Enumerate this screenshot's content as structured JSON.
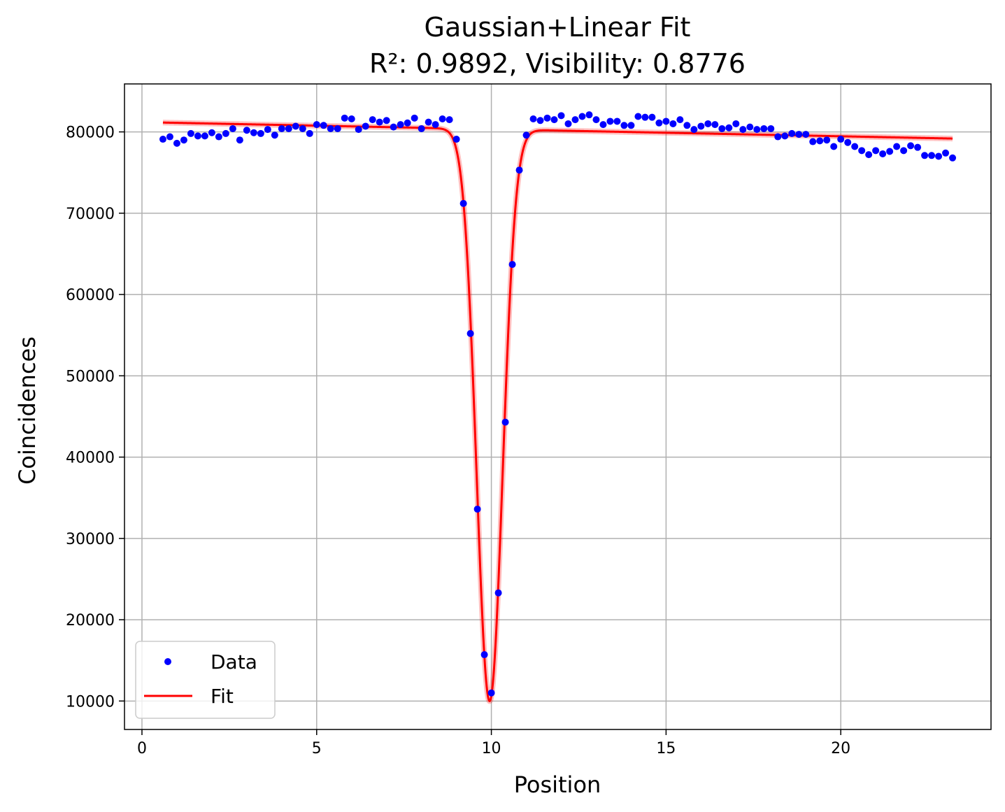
{
  "chart_data": {
    "type": "scatter",
    "title": "Gaussian+Linear Fit",
    "subtitle": "R²: 0.9892, Visibility: 0.8776",
    "xlabel": "Position",
    "ylabel": "Coincidences",
    "xlim": [
      -0.5,
      24.3
    ],
    "ylim": [
      6500,
      85900
    ],
    "xticks": [
      0,
      5,
      10,
      15,
      20
    ],
    "yticks": [
      10000,
      20000,
      30000,
      40000,
      50000,
      60000,
      70000,
      80000
    ],
    "grid": true,
    "legend_position": "lower-left",
    "series": [
      {
        "name": "Data",
        "kind": "points",
        "color": "#0000ff",
        "x": [
          0.6,
          0.8,
          1.0,
          1.2,
          1.4,
          1.6,
          1.8,
          2.0,
          2.2,
          2.4,
          2.6,
          2.8,
          3.0,
          3.2,
          3.4,
          3.6,
          3.8,
          4.0,
          4.2,
          4.4,
          4.6,
          4.8,
          5.0,
          5.2,
          5.4,
          5.6,
          5.8,
          6.0,
          6.2,
          6.4,
          6.6,
          6.8,
          7.0,
          7.2,
          7.4,
          7.6,
          7.8,
          8.0,
          8.2,
          8.4,
          8.6,
          8.8,
          9.0,
          9.2,
          9.4,
          9.6,
          9.8,
          10.0,
          10.2,
          10.4,
          10.6,
          10.8,
          11.0,
          11.2,
          11.4,
          11.6,
          11.8,
          12.0,
          12.2,
          12.4,
          12.6,
          12.8,
          13.0,
          13.2,
          13.4,
          13.6,
          13.8,
          14.0,
          14.2,
          14.4,
          14.6,
          14.8,
          15.0,
          15.2,
          15.4,
          15.6,
          15.8,
          16.0,
          16.2,
          16.4,
          16.6,
          16.8,
          17.0,
          17.2,
          17.4,
          17.6,
          17.8,
          18.0,
          18.2,
          18.4,
          18.6,
          18.8,
          19.0,
          19.2,
          19.4,
          19.6,
          19.8,
          20.0,
          20.2,
          20.4,
          20.6,
          20.8,
          21.0,
          21.2,
          21.4,
          21.6,
          21.8,
          22.0,
          22.2,
          22.4,
          22.6,
          22.8,
          23.0,
          23.2
        ],
        "y": [
          79100,
          79400,
          78600,
          79000,
          79800,
          79500,
          79500,
          79900,
          79400,
          79800,
          80400,
          79000,
          80200,
          79900,
          79800,
          80300,
          79600,
          80400,
          80400,
          80700,
          80400,
          79800,
          80900,
          80800,
          80400,
          80400,
          81700,
          81600,
          80300,
          80700,
          81500,
          81200,
          81400,
          80600,
          80900,
          81100,
          81700,
          80400,
          81200,
          80900,
          81600,
          81500,
          79100,
          71200,
          55200,
          33600,
          15700,
          11000,
          23300,
          44300,
          63700,
          75300,
          79600,
          81600,
          81400,
          81700,
          81500,
          82000,
          81000,
          81500,
          81900,
          82100,
          81500,
          80900,
          81300,
          81300,
          80800,
          80800,
          81900,
          81800,
          81800,
          81100,
          81300,
          81000,
          81500,
          80800,
          80300,
          80700,
          81000,
          80900,
          80400,
          80500,
          81000,
          80300,
          80600,
          80300,
          80400,
          80400,
          79400,
          79500,
          79800,
          79700,
          79700,
          78800,
          78900,
          79000,
          78200,
          79100,
          78700,
          78200,
          77700,
          77200,
          77700,
          77300,
          77600,
          78200,
          77700,
          78300,
          78100,
          77100,
          77100,
          77000,
          77400,
          76800
        ]
      },
      {
        "name": "Fit",
        "kind": "line",
        "color": "#ff0000",
        "model": "gaussian_plus_linear",
        "params": {
          "intercept": 81200,
          "slope": -87,
          "amplitude": 70350,
          "center": 9.95,
          "sigma": 0.37
        },
        "x_range": [
          0.6,
          23.2
        ]
      }
    ]
  }
}
